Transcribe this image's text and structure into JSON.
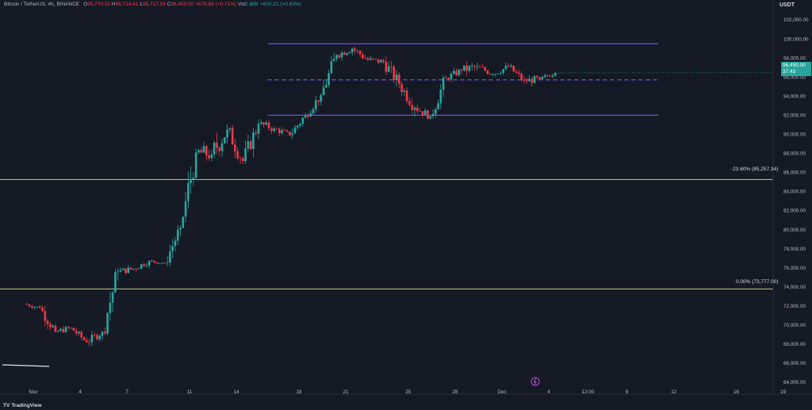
{
  "legend": {
    "pair": "Bitcoin / TetherUS, 4h, BINANCE",
    "o_label": "O",
    "o": "95,770.32",
    "h_label": "H",
    "h": "96,714.41",
    "l_label": "L",
    "l": "95,717.54",
    "c_label": "C",
    "c": "96,450.00",
    "change": "+679.68 (+0.71%)",
    "vol_label": "Vol",
    "vol": "2.88K",
    "extra": "+600.21 (+0.63%)"
  },
  "currency": "USDT",
  "price_tag": {
    "price": "96,450.00",
    "countdown": "37:43"
  },
  "fib_levels": [
    {
      "label": "-23.60% (85,257.34)",
      "price": 85257.34
    },
    {
      "label": "0.00% (73,777.00)",
      "price": 73777
    }
  ],
  "branding": "TradingView",
  "colors": {
    "background": "#161a25",
    "up": "#26a69a",
    "down": "#f23645",
    "channel": "#7b61ff",
    "fib": "#c5c27a"
  },
  "chart_data": {
    "type": "candlestick",
    "symbol": "BTCUSDT",
    "interval": "4h",
    "ylim": [
      63500,
      103500
    ],
    "y_ticks": [
      64000,
      66000,
      68000,
      70000,
      72000,
      74000,
      76000,
      78000,
      80000,
      82000,
      84000,
      86000,
      88000,
      90000,
      92000,
      94000,
      96000,
      98000,
      100000,
      102000
    ],
    "y_tick_labels": [
      "64,000.00",
      "66,000.00",
      "68,000.00",
      "70,000.00",
      "72,000.00",
      "74,000.00",
      "76,000.00",
      "78,000.00",
      "80,000.00",
      "82,000.00",
      "84,000.00",
      "86,000.00",
      "88,000.00",
      "90,000.00",
      "92,000.00",
      "94,000.00",
      "96,000.00",
      "98,000.00",
      "100,000.00",
      "102,000.00"
    ],
    "x_tick_labels": [
      "Nov",
      "4",
      "7",
      "11",
      "14",
      "18",
      "21",
      "25",
      "28",
      "Dec",
      "4",
      "12:00",
      "9",
      "12",
      "16",
      "19"
    ],
    "x_tick_days": [
      0,
      3,
      6,
      10,
      13,
      17,
      20,
      24,
      27,
      30,
      33,
      35.5,
      38,
      41,
      45,
      48
    ],
    "channel": {
      "top": 99500,
      "mid": 95700,
      "bottom": 92000,
      "start_day": 15,
      "end_day": 40
    },
    "ohlc_daily": [
      {
        "d": 0,
        "o": 72200,
        "h": 72800,
        "l": 71600,
        "c": 71800
      },
      {
        "d": 1,
        "o": 71800,
        "h": 72200,
        "l": 68900,
        "c": 69300
      },
      {
        "d": 2,
        "o": 69300,
        "h": 70100,
        "l": 68400,
        "c": 69700
      },
      {
        "d": 3,
        "o": 69700,
        "h": 69900,
        "l": 67800,
        "c": 68200
      },
      {
        "d": 4,
        "o": 68200,
        "h": 69600,
        "l": 67100,
        "c": 69300
      },
      {
        "d": 5,
        "o": 69300,
        "h": 76000,
        "l": 68900,
        "c": 75600
      },
      {
        "d": 6,
        "o": 75600,
        "h": 76400,
        "l": 74500,
        "c": 75900
      },
      {
        "d": 7,
        "o": 75900,
        "h": 77200,
        "l": 75400,
        "c": 76700
      },
      {
        "d": 8,
        "o": 76700,
        "h": 77000,
        "l": 76000,
        "c": 76500
      },
      {
        "d": 9,
        "o": 76500,
        "h": 80500,
        "l": 76200,
        "c": 80200
      },
      {
        "d": 10,
        "o": 80200,
        "h": 88500,
        "l": 80100,
        "c": 88100
      },
      {
        "d": 11,
        "o": 88100,
        "h": 89900,
        "l": 85200,
        "c": 87900
      },
      {
        "d": 12,
        "o": 87900,
        "h": 93200,
        "l": 86600,
        "c": 90500
      },
      {
        "d": 13,
        "o": 90500,
        "h": 91800,
        "l": 86900,
        "c": 87200
      },
      {
        "d": 14,
        "o": 87200,
        "h": 91600,
        "l": 86700,
        "c": 91100
      },
      {
        "d": 15,
        "o": 91100,
        "h": 92000,
        "l": 89600,
        "c": 90600
      },
      {
        "d": 16,
        "o": 90600,
        "h": 91200,
        "l": 89200,
        "c": 89900
      },
      {
        "d": 17,
        "o": 89900,
        "h": 92400,
        "l": 89500,
        "c": 92000
      },
      {
        "d": 18,
        "o": 92000,
        "h": 94300,
        "l": 91500,
        "c": 94100
      },
      {
        "d": 19,
        "o": 94100,
        "h": 98700,
        "l": 93800,
        "c": 98300
      },
      {
        "d": 20,
        "o": 98300,
        "h": 99400,
        "l": 97200,
        "c": 99000
      },
      {
        "d": 21,
        "o": 99000,
        "h": 99400,
        "l": 97100,
        "c": 97800
      },
      {
        "d": 22,
        "o": 97800,
        "h": 98500,
        "l": 96600,
        "c": 97600
      },
      {
        "d": 23,
        "o": 97600,
        "h": 98800,
        "l": 94800,
        "c": 95300
      },
      {
        "d": 24,
        "o": 95300,
        "h": 95600,
        "l": 91700,
        "c": 92800
      },
      {
        "d": 25,
        "o": 92800,
        "h": 93300,
        "l": 90900,
        "c": 91900
      },
      {
        "d": 26,
        "o": 91900,
        "h": 96200,
        "l": 91600,
        "c": 95900
      },
      {
        "d": 27,
        "o": 95900,
        "h": 97300,
        "l": 95200,
        "c": 96700
      },
      {
        "d": 28,
        "o": 96700,
        "h": 98600,
        "l": 95800,
        "c": 97100
      },
      {
        "d": 29,
        "o": 97100,
        "h": 97600,
        "l": 95800,
        "c": 96300
      },
      {
        "d": 30,
        "o": 96300,
        "h": 97800,
        "l": 95900,
        "c": 97100
      },
      {
        "d": 31,
        "o": 97100,
        "h": 97400,
        "l": 95000,
        "c": 95600
      },
      {
        "d": 32,
        "o": 95600,
        "h": 96500,
        "l": 94300,
        "c": 95800
      },
      {
        "d": 33,
        "o": 95800,
        "h": 96714,
        "l": 95400,
        "c": 96450
      }
    ]
  }
}
